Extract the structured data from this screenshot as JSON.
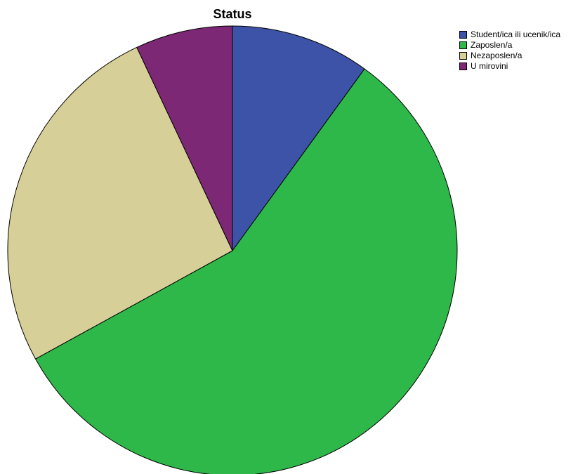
{
  "chart_data": {
    "type": "pie",
    "title": "Status",
    "categories": [
      "Student/ica ili ucenik/ica",
      "Zaposlen/a",
      "Nezaposlen/a",
      "U mirovini"
    ],
    "values": [
      10.0,
      57.0,
      26.0,
      7.0
    ],
    "unit": "percent (estimated share of whole)",
    "colors": [
      "#3d53a8",
      "#2eb84a",
      "#d6cf98",
      "#7d2874"
    ],
    "slice_border_color": "#000000",
    "start_angle_deg": 0,
    "direction": "clockwise",
    "legend_position": "top-right"
  }
}
